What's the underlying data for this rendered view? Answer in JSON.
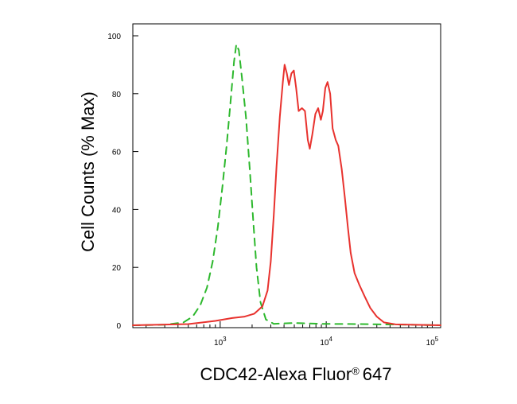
{
  "chart_data": {
    "type": "line",
    "title": "",
    "xlabel_main": "CDC42-Alexa Fluor",
    "xlabel_reg": "®",
    "xlabel_tail": "647",
    "ylabel": "Cell Counts (% Max)",
    "x_scale": "log",
    "xlim": [
      150,
      120000
    ],
    "ylim": [
      0,
      100
    ],
    "x_ticks": [
      {
        "value": 1000,
        "base": "10",
        "exp": "3"
      },
      {
        "value": 10000,
        "base": "10",
        "exp": "4"
      },
      {
        "value": 100000,
        "base": "10",
        "exp": "5"
      }
    ],
    "y_ticks": [
      0,
      20,
      40,
      60,
      80,
      100
    ],
    "grid": false,
    "series": [
      {
        "color": "#2db82d",
        "dash": true,
        "points": [
          [
            150,
            0
          ],
          [
            300,
            0.2
          ],
          [
            450,
            1
          ],
          [
            550,
            3
          ],
          [
            650,
            7
          ],
          [
            750,
            13
          ],
          [
            850,
            22
          ],
          [
            950,
            34
          ],
          [
            1050,
            48
          ],
          [
            1150,
            62
          ],
          [
            1250,
            77
          ],
          [
            1350,
            91
          ],
          [
            1420,
            97
          ],
          [
            1500,
            95
          ],
          [
            1600,
            86
          ],
          [
            1750,
            72
          ],
          [
            1900,
            54
          ],
          [
            2050,
            36
          ],
          [
            2200,
            20
          ],
          [
            2400,
            8
          ],
          [
            2700,
            2
          ],
          [
            3200,
            0.5
          ],
          [
            5000,
            0.8
          ],
          [
            9000,
            0.5
          ],
          [
            20000,
            0.4
          ],
          [
            60000,
            0.2
          ],
          [
            120000,
            0
          ]
        ]
      },
      {
        "color": "#e8322e",
        "dash": false,
        "points": [
          [
            150,
            0
          ],
          [
            500,
            0.4
          ],
          [
            900,
            1.5
          ],
          [
            1300,
            2.5
          ],
          [
            1700,
            3
          ],
          [
            2100,
            4
          ],
          [
            2500,
            6.5
          ],
          [
            2800,
            12
          ],
          [
            3000,
            22
          ],
          [
            3200,
            38
          ],
          [
            3400,
            55
          ],
          [
            3650,
            72
          ],
          [
            3900,
            84
          ],
          [
            4050,
            90
          ],
          [
            4250,
            87
          ],
          [
            4450,
            83
          ],
          [
            4700,
            87
          ],
          [
            4950,
            88
          ],
          [
            5200,
            82
          ],
          [
            5500,
            74
          ],
          [
            5900,
            75
          ],
          [
            6300,
            74
          ],
          [
            6700,
            64
          ],
          [
            7000,
            61
          ],
          [
            7400,
            66
          ],
          [
            7900,
            73
          ],
          [
            8400,
            75
          ],
          [
            8900,
            71
          ],
          [
            9300,
            74
          ],
          [
            9800,
            82
          ],
          [
            10300,
            84
          ],
          [
            10900,
            80
          ],
          [
            11500,
            68
          ],
          [
            12300,
            64
          ],
          [
            13000,
            62
          ],
          [
            14000,
            54
          ],
          [
            15000,
            44
          ],
          [
            16000,
            34
          ],
          [
            17000,
            25
          ],
          [
            18500,
            18
          ],
          [
            20500,
            14
          ],
          [
            23000,
            10
          ],
          [
            26000,
            6
          ],
          [
            30000,
            3
          ],
          [
            35000,
            1
          ],
          [
            45000,
            0.3
          ],
          [
            120000,
            0
          ]
        ]
      }
    ]
  }
}
